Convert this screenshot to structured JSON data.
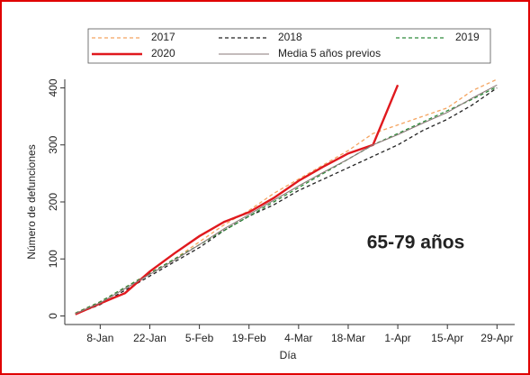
{
  "chart_data": {
    "type": "line",
    "annotation": "65-79 años",
    "xlabel": "Día",
    "ylabel": "Número de defunciones",
    "x": [
      1,
      8,
      15,
      22,
      29,
      36,
      43,
      50,
      57,
      64,
      71,
      78,
      85,
      92,
      99,
      106,
      113,
      120
    ],
    "xlim": [
      -2,
      125
    ],
    "xticks": [
      {
        "value": 8,
        "label": "8-Jan"
      },
      {
        "value": 22,
        "label": "22-Jan"
      },
      {
        "value": 36,
        "label": "5-Feb"
      },
      {
        "value": 50,
        "label": "19-Feb"
      },
      {
        "value": 64,
        "label": "4-Mar"
      },
      {
        "value": 78,
        "label": "18-Mar"
      },
      {
        "value": 92,
        "label": "1-Apr"
      },
      {
        "value": 106,
        "label": "15-Apr"
      },
      {
        "value": 120,
        "label": "29-Apr"
      }
    ],
    "ylim": [
      -15,
      415
    ],
    "yticks": [
      0,
      100,
      200,
      300,
      400
    ],
    "series": [
      {
        "name": "2017",
        "color": "#f4a460",
        "style": "dashed",
        "values": [
          5,
          25,
          50,
          75,
          100,
          130,
          160,
          185,
          215,
          240,
          265,
          290,
          320,
          335,
          350,
          365,
          395,
          415
        ]
      },
      {
        "name": "2018",
        "color": "#222222",
        "style": "dashed",
        "values": [
          3,
          20,
          45,
          70,
          95,
          120,
          150,
          175,
          195,
          220,
          240,
          260,
          280,
          300,
          325,
          345,
          370,
          400
        ]
      },
      {
        "name": "2019",
        "color": "#2e8b3a",
        "style": "dashed",
        "values": [
          5,
          25,
          50,
          75,
          100,
          125,
          150,
          175,
          200,
          225,
          250,
          275,
          300,
          320,
          340,
          360,
          380,
          402
        ]
      },
      {
        "name": "2020",
        "color": "#e0191e",
        "style": "thick",
        "values": [
          3,
          22,
          40,
          78,
          110,
          140,
          165,
          182,
          207,
          237,
          262,
          285,
          300,
          405,
          null,
          null,
          null,
          null
        ]
      },
      {
        "name": "Media 5 años previos",
        "color": "#8a7a78",
        "style": "solid",
        "values": [
          4,
          23,
          48,
          73,
          98,
          125,
          153,
          178,
          203,
          228,
          252,
          275,
          300,
          318,
          338,
          357,
          382,
          405
        ]
      }
    ]
  }
}
